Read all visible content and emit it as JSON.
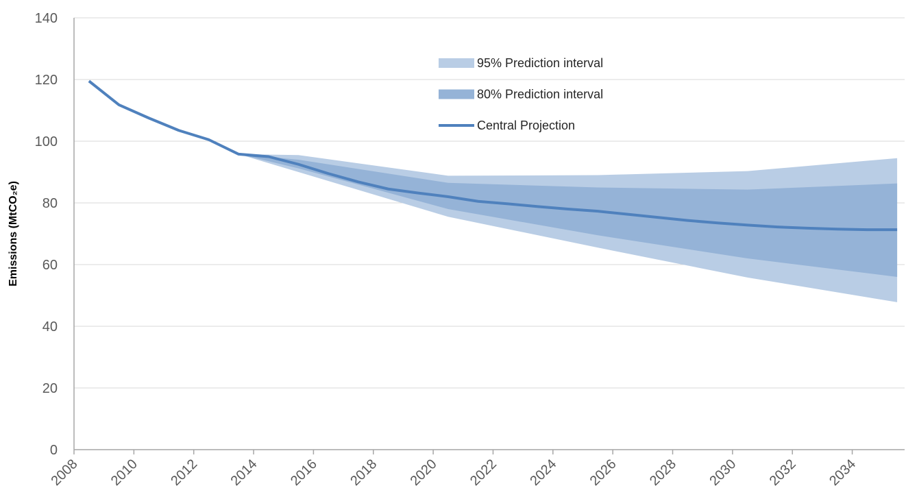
{
  "chart_data": {
    "type": "line",
    "y_label": "Emissions (MtCO₂e)",
    "xlim": [
      2008,
      2035.75
    ],
    "xticks": [
      2008,
      2010,
      2012,
      2014,
      2016,
      2018,
      2020,
      2022,
      2024,
      2026,
      2028,
      2030,
      2032,
      2034
    ],
    "ylim": [
      0,
      140
    ],
    "yticks": [
      0,
      20,
      40,
      60,
      80,
      100,
      120,
      140
    ],
    "grid": true,
    "series": [
      {
        "name": "95% Prediction interval",
        "kind": "band",
        "color": "#b9cde5",
        "x": [
          2013.5,
          2015.5,
          2020.5,
          2025.5,
          2030.5,
          2035.5
        ],
        "lower": [
          95.8,
          90,
          75.5,
          65.5,
          55.8,
          47.8
        ],
        "upper": [
          95.8,
          95.5,
          88.8,
          89,
          90.3,
          94.5
        ]
      },
      {
        "name": "80% Prediction interval",
        "kind": "band",
        "color": "#95b3d7",
        "x": [
          2013.5,
          2015.5,
          2020.5,
          2025.5,
          2030.5,
          2035.5
        ],
        "lower": [
          95.8,
          91.2,
          78,
          69.5,
          62,
          56
        ],
        "upper": [
          95.8,
          94,
          86.5,
          85,
          84.3,
          86.3
        ]
      },
      {
        "name": "Central Projection",
        "kind": "line",
        "color": "#4f81bd",
        "x": [
          2008.5,
          2009.5,
          2010.5,
          2011.5,
          2012.5,
          2013.5,
          2014.5,
          2015.5,
          2016.5,
          2017.5,
          2018.5,
          2019.5,
          2020.5,
          2021.5,
          2022.5,
          2023.5,
          2024.5,
          2025.5,
          2026.5,
          2027.5,
          2028.5,
          2029.5,
          2030.5,
          2031.5,
          2032.5,
          2033.5,
          2034.5,
          2035.5
        ],
        "values": [
          119.5,
          111.8,
          107.5,
          103.5,
          100.5,
          95.8,
          95,
          92.5,
          89.5,
          86.8,
          84.5,
          83.2,
          82,
          80.5,
          79.7,
          78.8,
          78,
          77.3,
          76.3,
          75.3,
          74.3,
          73.5,
          72.8,
          72.2,
          71.8,
          71.5,
          71.3,
          71.3
        ]
      }
    ]
  }
}
